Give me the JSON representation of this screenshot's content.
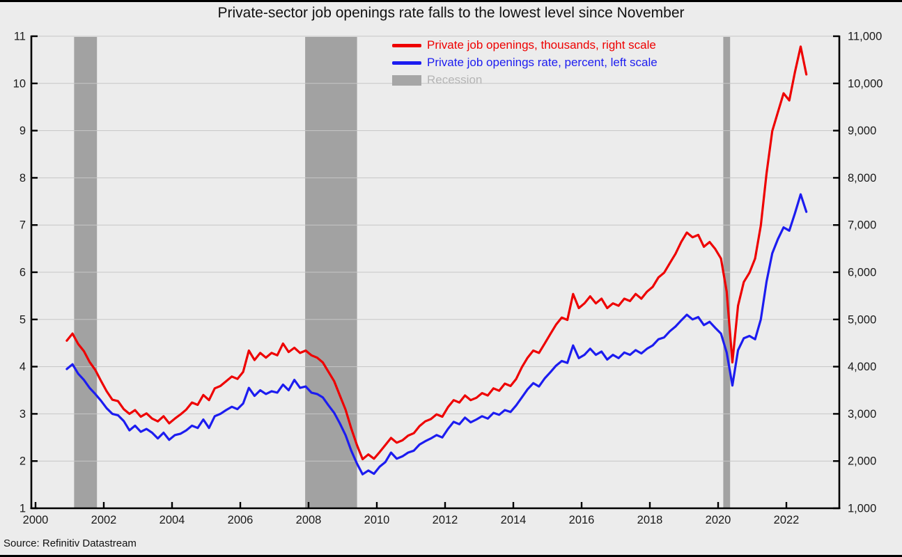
{
  "title": "Private-sector job openings rate falls to the lowest level since November",
  "source": "Source: Refinitiv Datastream",
  "colors": {
    "background": "#ececec",
    "openings_line": "#ee0000",
    "rate_line": "#1c1cf0",
    "recession_band": "#a2a2a2",
    "recession_legend_text": "#b5b5b5",
    "grid": "#c6c6c6",
    "axis": "#000000",
    "tick_label": "#1a1a1a"
  },
  "legend": [
    {
      "label": "Private job openings, thousands, right scale",
      "swatch": "line",
      "color": "#ee0000"
    },
    {
      "label": "Private job openings rate, percent, left scale",
      "swatch": "line",
      "color": "#1c1cf0"
    },
    {
      "label": "Recession",
      "swatch": "box",
      "color": "#a6a6a6",
      "text_color": "#b5b5b5"
    }
  ],
  "chart_data": {
    "type": "line",
    "title": "Private-sector job openings rate falls to the lowest level since November",
    "xlabel": "",
    "ylabel_left": "percent",
    "ylabel_right": "thousands",
    "grid": "horizontal",
    "legend_position": "top-center-inside",
    "xlim": [
      2000,
      2023.55
    ],
    "x_ticks": [
      2000,
      2002,
      2004,
      2006,
      2008,
      2010,
      2012,
      2014,
      2016,
      2018,
      2020,
      2022
    ],
    "left_axis": {
      "min": 1,
      "max": 11,
      "ticks": [
        1,
        2,
        3,
        4,
        5,
        6,
        7,
        8,
        9,
        10,
        11
      ]
    },
    "right_axis": {
      "min": 1000,
      "max": 11000,
      "tick_labels": [
        "1,000",
        "2,000",
        "3,000",
        "4,000",
        "5,000",
        "6,000",
        "7,000",
        "8,000",
        "9,000",
        "10,000",
        "11,000"
      ]
    },
    "recessions": [
      [
        2001.13,
        2001.8
      ],
      [
        2007.9,
        2009.42
      ],
      [
        2020.15,
        2020.35
      ]
    ],
    "x_start": 2000.9167,
    "x_step_years": 0.16667,
    "series": [
      {
        "name": "Private job openings, thousands, right scale",
        "axis": "right",
        "color": "#ee0000",
        "values": [
          4550,
          4700,
          4480,
          4330,
          4100,
          3930,
          3700,
          3480,
          3300,
          3270,
          3100,
          3000,
          3080,
          2940,
          3010,
          2900,
          2840,
          2950,
          2800,
          2900,
          2990,
          3090,
          3240,
          3190,
          3400,
          3290,
          3540,
          3590,
          3690,
          3790,
          3740,
          3890,
          4340,
          4140,
          4290,
          4190,
          4290,
          4240,
          4490,
          4310,
          4400,
          4290,
          4340,
          4240,
          4190,
          4090,
          3890,
          3690,
          3390,
          3090,
          2690,
          2340,
          2040,
          2140,
          2050,
          2190,
          2340,
          2490,
          2390,
          2440,
          2540,
          2590,
          2740,
          2840,
          2890,
          2990,
          2940,
          3140,
          3290,
          3240,
          3390,
          3290,
          3340,
          3440,
          3390,
          3540,
          3490,
          3640,
          3590,
          3740,
          3990,
          4190,
          4340,
          4290,
          4490,
          4690,
          4890,
          5040,
          4990,
          5540,
          5240,
          5340,
          5490,
          5340,
          5440,
          5240,
          5340,
          5290,
          5440,
          5390,
          5540,
          5440,
          5590,
          5690,
          5890,
          5990,
          6190,
          6390,
          6640,
          6840,
          6740,
          6790,
          6540,
          6640,
          6490,
          6290,
          5590,
          4090,
          5290,
          5790,
          5990,
          6290,
          6990,
          8090,
          8990,
          9390,
          9790,
          9640,
          10240,
          10780,
          10190
        ]
      },
      {
        "name": "Private job openings rate, percent, left scale",
        "axis": "left",
        "color": "#1c1cf0",
        "values": [
          3.95,
          4.05,
          3.85,
          3.72,
          3.55,
          3.42,
          3.28,
          3.12,
          3.0,
          2.97,
          2.85,
          2.65,
          2.75,
          2.62,
          2.68,
          2.6,
          2.48,
          2.6,
          2.45,
          2.55,
          2.58,
          2.65,
          2.75,
          2.7,
          2.88,
          2.7,
          2.95,
          3.0,
          3.08,
          3.15,
          3.1,
          3.22,
          3.55,
          3.38,
          3.5,
          3.42,
          3.48,
          3.45,
          3.62,
          3.5,
          3.72,
          3.55,
          3.58,
          3.45,
          3.42,
          3.35,
          3.18,
          3.02,
          2.8,
          2.55,
          2.22,
          1.95,
          1.72,
          1.8,
          1.73,
          1.88,
          1.98,
          2.18,
          2.05,
          2.1,
          2.18,
          2.22,
          2.35,
          2.42,
          2.48,
          2.55,
          2.5,
          2.68,
          2.83,
          2.78,
          2.92,
          2.82,
          2.88,
          2.95,
          2.9,
          3.02,
          2.98,
          3.08,
          3.04,
          3.18,
          3.35,
          3.52,
          3.65,
          3.58,
          3.75,
          3.88,
          4.02,
          4.12,
          4.08,
          4.45,
          4.18,
          4.25,
          4.38,
          4.25,
          4.32,
          4.15,
          4.25,
          4.18,
          4.3,
          4.25,
          4.35,
          4.28,
          4.38,
          4.45,
          4.58,
          4.62,
          4.75,
          4.85,
          4.98,
          5.1,
          5.0,
          5.05,
          4.88,
          4.95,
          4.82,
          4.7,
          4.3,
          3.6,
          4.35,
          4.6,
          4.65,
          4.58,
          5.0,
          5.8,
          6.4,
          6.7,
          6.95,
          6.88,
          7.25,
          7.65,
          7.28
        ]
      }
    ]
  }
}
